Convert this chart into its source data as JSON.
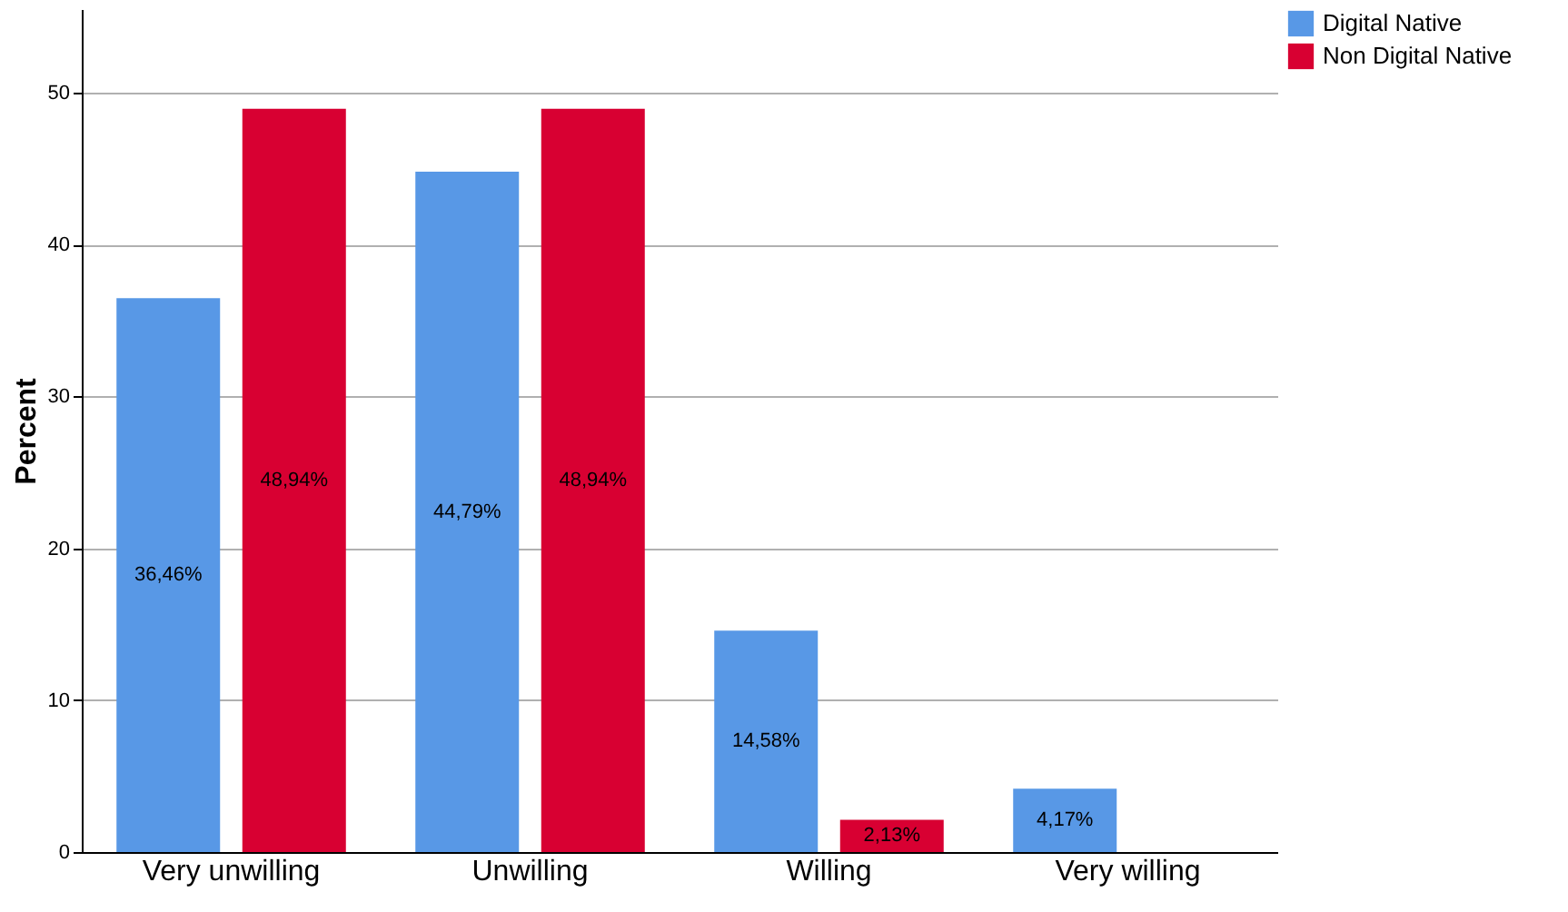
{
  "chart_data": {
    "type": "bar",
    "ylabel": "Percent",
    "categories": [
      "Very unwilling",
      "Unwilling",
      "Willing",
      "Very willing"
    ],
    "series": [
      {
        "name": "Digital Native",
        "color": "#5898e6",
        "values": [
          36.46,
          44.79,
          14.58,
          4.17
        ],
        "value_labels": [
          "36,46%",
          "44,79%",
          "14,58%",
          "4,17%"
        ]
      },
      {
        "name": "Non Digital Native",
        "color": "#d80032",
        "values": [
          48.94,
          48.94,
          2.13,
          null
        ],
        "value_labels": [
          "48,94%",
          "48,94%",
          "2,13%",
          null
        ]
      }
    ],
    "ylim": [
      0,
      55.5
    ],
    "yticks": [
      0,
      10,
      20,
      30,
      40,
      50
    ],
    "grid": "y",
    "legend": "top right"
  }
}
